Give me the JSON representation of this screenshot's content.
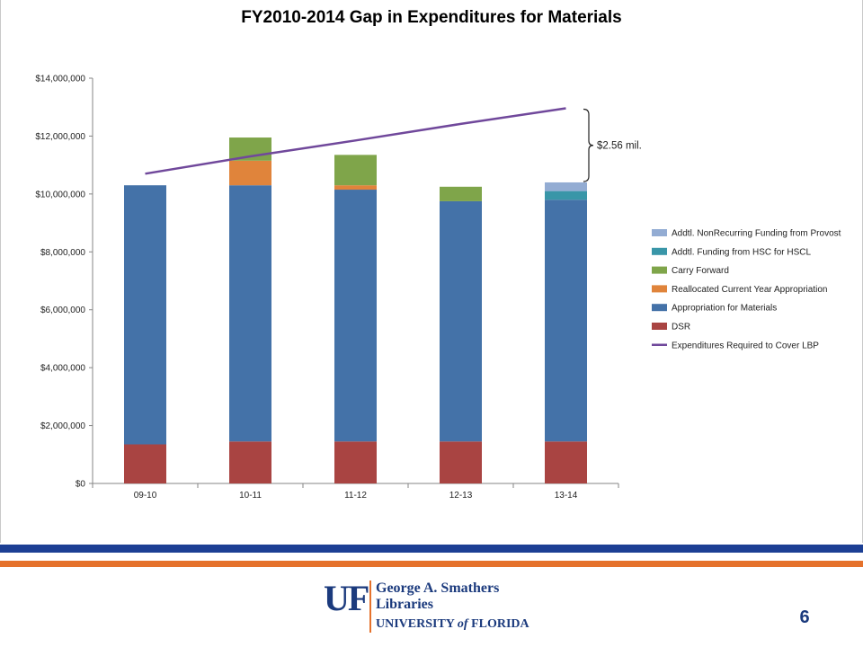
{
  "slide": {
    "number": "6"
  },
  "logo": {
    "mark": "UF",
    "line1": "George A. Smathers",
    "line2": "Libraries",
    "line3_prefix": "UNIVERSITY ",
    "line3_italic": "of",
    "line3_suffix": " FLORIDA"
  },
  "colors": {
    "stripe_blue": "#1c3f94",
    "stripe_orange": "#e5722c",
    "dsr": "#a94442",
    "appropriation": "#4472a8",
    "reallocated": "#e0843b",
    "carry_forward": "#7fa54a",
    "hsc": "#3996a8",
    "provost": "#93acd3",
    "expenditures_line": "#70489b"
  },
  "chart_data": {
    "type": "bar",
    "stacked": true,
    "title": "FY2010-2014 Gap in Expenditures for Materials",
    "categories": [
      "09-10",
      "10-11",
      "11-12",
      "12-13",
      "13-14"
    ],
    "y_ticks": [
      "$0",
      "$2,000,000",
      "$4,000,000",
      "$6,000,000",
      "$8,000,000",
      "$10,000,000",
      "$12,000,000",
      "$14,000,000"
    ],
    "ylim": [
      0,
      14000000
    ],
    "series": [
      {
        "name": "DSR",
        "color": "#a94442",
        "values": [
          1350000,
          1450000,
          1450000,
          1450000,
          1450000
        ]
      },
      {
        "name": "Appropriation for Materials",
        "color": "#4472a8",
        "values": [
          8950000,
          8850000,
          8700000,
          8300000,
          8350000
        ]
      },
      {
        "name": "Reallocated Current Year Appropriation",
        "color": "#e0843b",
        "values": [
          0,
          850000,
          150000,
          0,
          0
        ]
      },
      {
        "name": "Carry Forward",
        "color": "#7fa54a",
        "values": [
          0,
          800000,
          1050000,
          500000,
          0
        ]
      },
      {
        "name": "Addtl. Funding from HSC for HSCL",
        "color": "#3996a8",
        "values": [
          0,
          0,
          0,
          0,
          300000
        ]
      },
      {
        "name": "Addtl. NonRecurring Funding from Provost",
        "color": "#93acd3",
        "values": [
          0,
          0,
          0,
          0,
          300000
        ]
      }
    ],
    "line_series": {
      "name": "Expenditures Required to Cover LBP",
      "color": "#70489b",
      "values": [
        10700000,
        11300000,
        11850000,
        12420000,
        12960000
      ]
    },
    "legend_order": [
      "Addtl. NonRecurring Funding from Provost",
      "Addtl. Funding from HSC for HSCL",
      "Carry Forward",
      "Reallocated Current Year Appropriation",
      "Appropriation for Materials",
      "DSR",
      "Expenditures Required to Cover LBP"
    ],
    "legend_position": "right",
    "annotation": {
      "text": "$2.56 mil.",
      "from_value": 10400000,
      "to_value": 12960000,
      "category": "13-14"
    },
    "grid": false
  }
}
